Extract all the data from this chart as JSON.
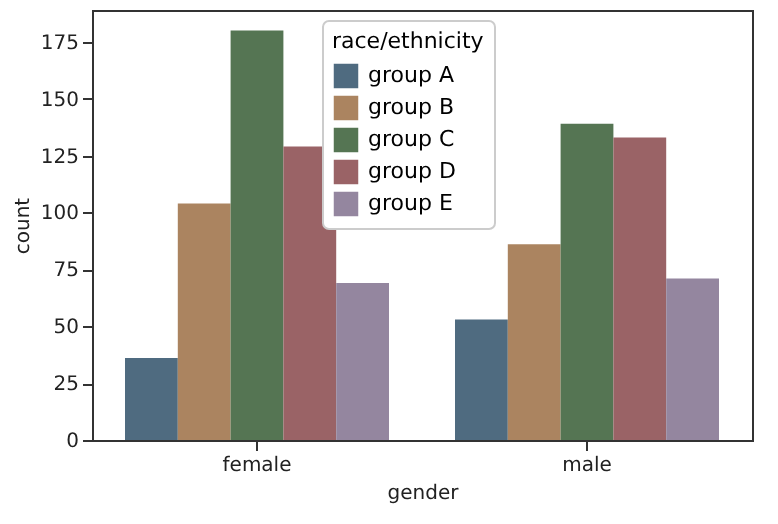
{
  "chart_data": {
    "type": "bar",
    "xlabel": "gender",
    "ylabel": "count",
    "legend_title": "race/ethnicity",
    "legend": "top",
    "grid": false,
    "categories": [
      "female",
      "male"
    ],
    "series": [
      {
        "name": "group A",
        "color": "#4f6b80",
        "values": [
          36,
          53
        ]
      },
      {
        "name": "group B",
        "color": "#ab8460",
        "values": [
          104,
          86
        ]
      },
      {
        "name": "group C",
        "color": "#557553",
        "values": [
          180,
          139
        ]
      },
      {
        "name": "group D",
        "color": "#9a6366",
        "values": [
          129,
          133
        ]
      },
      {
        "name": "group E",
        "color": "#94869f",
        "values": [
          69,
          71
        ]
      }
    ],
    "ylim": [
      0,
      189
    ],
    "yticks": [
      0,
      25,
      50,
      75,
      100,
      125,
      150,
      175
    ]
  }
}
